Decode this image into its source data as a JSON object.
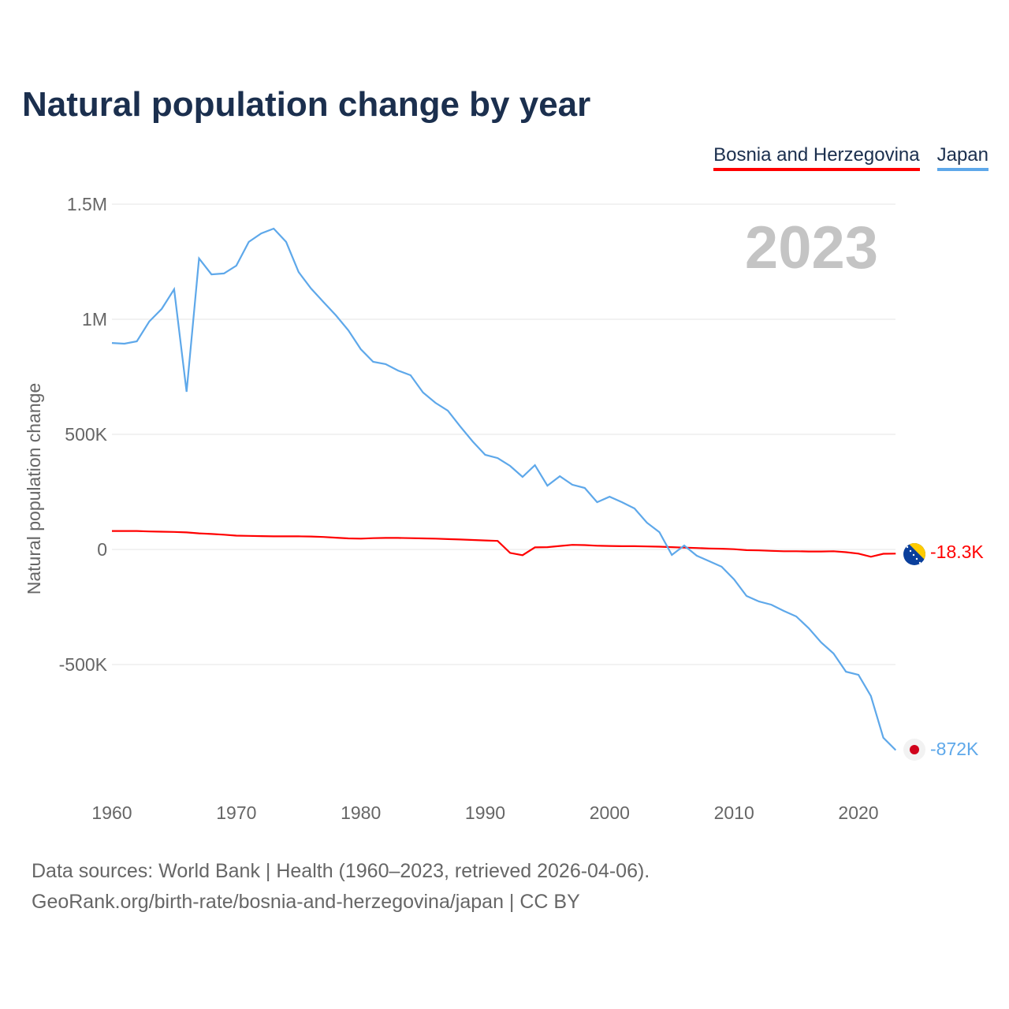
{
  "title": "Natural population change by year",
  "year_label": "2023",
  "footer": {
    "line1": "Data sources: World Bank | Health (1960–2023, retrieved 2026-04-06).",
    "line2": "GeoRank.org/birth-rate/bosnia-and-herzegovina/japan | CC BY"
  },
  "chart_data": {
    "type": "line",
    "title": "Natural population change by year",
    "xlabel": "",
    "ylabel": "Natural population change",
    "xlim": [
      1960,
      2023
    ],
    "ylim": [
      -1000000,
      1500000
    ],
    "grid": true,
    "legend": "top-right",
    "x_ticks": [
      "1960",
      "1970",
      "1980",
      "1990",
      "2000",
      "2010",
      "2020"
    ],
    "x_tick_values": [
      1960,
      1970,
      1980,
      1990,
      2000,
      2010,
      2020
    ],
    "y_ticks": [
      "1.5M",
      "1M",
      "500K",
      "0",
      "-500K"
    ],
    "y_tick_values": [
      1500000,
      1000000,
      500000,
      0,
      -500000
    ],
    "x": [
      1960,
      1961,
      1962,
      1963,
      1964,
      1965,
      1966,
      1967,
      1968,
      1969,
      1970,
      1971,
      1972,
      1973,
      1974,
      1975,
      1976,
      1977,
      1978,
      1979,
      1980,
      1981,
      1982,
      1983,
      1984,
      1985,
      1986,
      1987,
      1988,
      1989,
      1990,
      1991,
      1992,
      1993,
      1994,
      1995,
      1996,
      1997,
      1998,
      1999,
      2000,
      2001,
      2002,
      2003,
      2004,
      2005,
      2006,
      2007,
      2008,
      2009,
      2010,
      2011,
      2012,
      2013,
      2014,
      2015,
      2016,
      2017,
      2018,
      2019,
      2020,
      2021,
      2022,
      2023
    ],
    "series": [
      {
        "name": "Bosnia and Herzegovina",
        "color": "#ff0000",
        "end_label": "-18.3K",
        "values": [
          80000,
          80000,
          80000,
          78000,
          77000,
          76000,
          74000,
          70000,
          67000,
          64000,
          60000,
          59000,
          58000,
          57000,
          57000,
          57000,
          56000,
          54000,
          51000,
          48000,
          47000,
          49000,
          50000,
          50000,
          49000,
          48000,
          47000,
          45000,
          43000,
          41000,
          39000,
          37000,
          -15000,
          -25000,
          9000,
          10000,
          15000,
          20000,
          19000,
          16000,
          15000,
          14000,
          14000,
          13000,
          12000,
          10000,
          8000,
          6000,
          4000,
          3000,
          1000,
          -3000,
          -4000,
          -6000,
          -8000,
          -8000,
          -9000,
          -9000,
          -8000,
          -12000,
          -18000,
          -32000,
          -19000,
          -18300
        ]
      },
      {
        "name": "Japan",
        "color": "#5ea8ea",
        "end_label": "-872K",
        "values": [
          897000,
          894000,
          904000,
          990000,
          1045000,
          1130000,
          685000,
          1264000,
          1195000,
          1199000,
          1233000,
          1336000,
          1373000,
          1394000,
          1336000,
          1205000,
          1134000,
          1075000,
          1017000,
          952000,
          870000,
          815000,
          805000,
          777000,
          757000,
          682000,
          637000,
          603000,
          534000,
          469000,
          411000,
          397000,
          363000,
          315000,
          366000,
          277000,
          318000,
          281000,
          267000,
          205000,
          229000,
          205000,
          178000,
          116000,
          75000,
          -24000,
          17000,
          -27000,
          -51000,
          -75000,
          -130000,
          -202000,
          -226000,
          -240000,
          -267000,
          -291000,
          -342000,
          -404000,
          -452000,
          -531000,
          -545000,
          -637000,
          -818000,
          -872000
        ]
      }
    ]
  }
}
